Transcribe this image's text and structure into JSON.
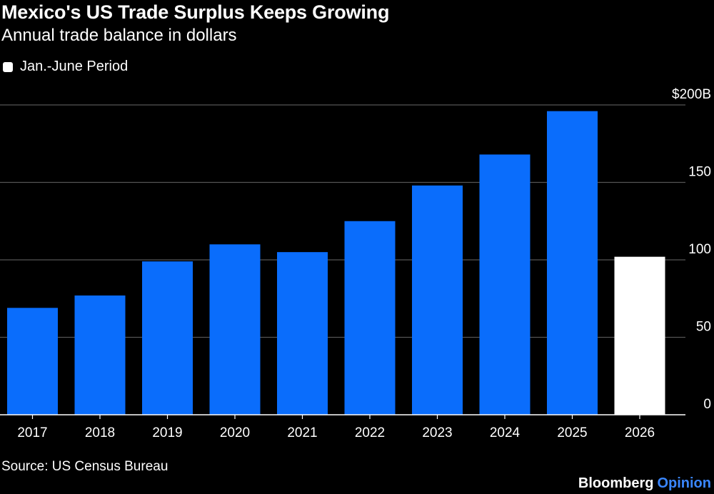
{
  "header": {
    "title": "Mexico's US Trade Surplus Keeps Growing",
    "subtitle": "Annual trade balance in dollars"
  },
  "legend": {
    "label": "Jan.-June Period",
    "color": "#ffffff"
  },
  "footer": {
    "source": "Source: US Census Bureau",
    "brand": "Bloomberg",
    "brand_suffix": "Opinion"
  },
  "colors": {
    "background": "#000000",
    "bar_full_year": "#0a6dfc",
    "bar_partial": "#ffffff",
    "gridline": "#555555",
    "text": "#ffffff",
    "brand_accent": "#3a86ff"
  },
  "chart_data": {
    "type": "bar",
    "title": "Mexico's US Trade Surplus Keeps Growing",
    "subtitle": "Annual trade balance in dollars",
    "xlabel": "",
    "ylabel": "",
    "categories": [
      "2017",
      "2018",
      "2019",
      "2020",
      "2021",
      "2022",
      "2023",
      "2024",
      "2025",
      "2026"
    ],
    "values": [
      69,
      77,
      99,
      110,
      105,
      125,
      148,
      168,
      196,
      102
    ],
    "partial_period": [
      false,
      false,
      false,
      false,
      false,
      false,
      false,
      false,
      false,
      true
    ],
    "ylim": [
      0,
      200
    ],
    "yticks": [
      0,
      50,
      100,
      150,
      200
    ],
    "ytick_labels": [
      "0",
      "50",
      "100",
      "150",
      "$200B"
    ],
    "yaxis_position": "right",
    "grid": true,
    "legend_position": "top-left",
    "legend": [
      "Jan.-June Period"
    ]
  }
}
